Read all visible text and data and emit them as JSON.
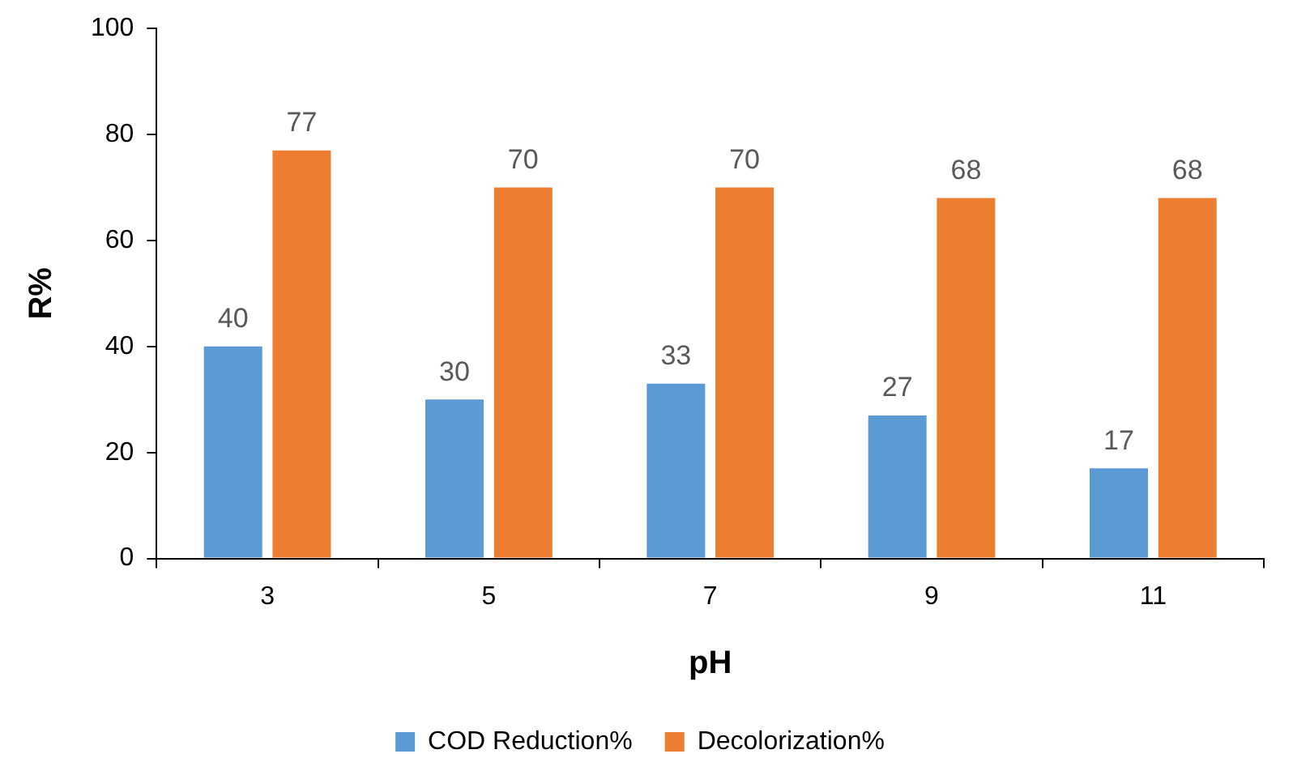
{
  "chart_data": {
    "type": "bar",
    "xlabel": "pH",
    "ylabel": "R%",
    "categories": [
      "3",
      "5",
      "7",
      "9",
      "11"
    ],
    "series": [
      {
        "name": "COD Reduction%",
        "color": "#5b9bd5",
        "values": [
          40,
          30,
          33,
          27,
          17
        ]
      },
      {
        "name": "Decolorization%",
        "color": "#ed7d31",
        "values": [
          77,
          70,
          70,
          68,
          68
        ]
      }
    ],
    "ylim": [
      0,
      100
    ],
    "yticks": [
      0,
      20,
      40,
      60,
      80,
      100
    ],
    "grid": false,
    "legend": "bottom",
    "data_labels": true
  }
}
